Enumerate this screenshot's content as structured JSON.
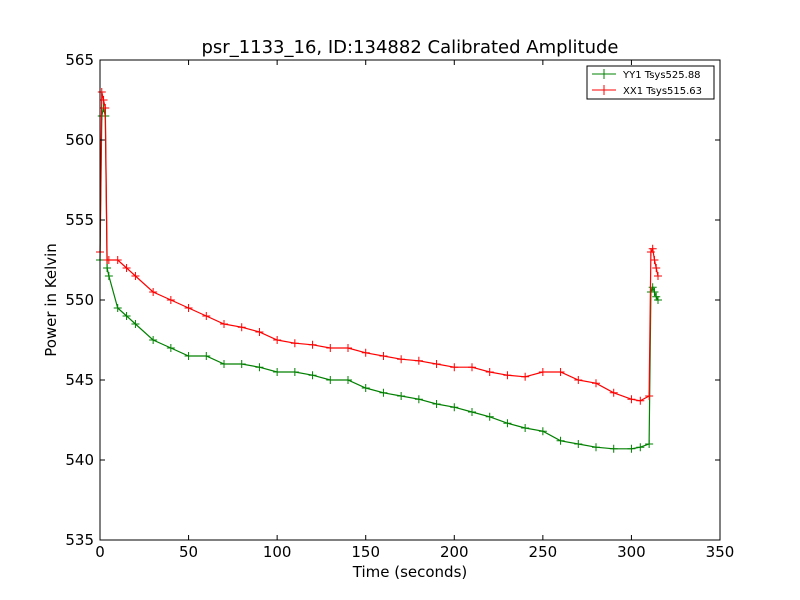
{
  "chart_data": {
    "type": "line",
    "title": "psr_1133_16, ID:134882 Calibrated Amplitude",
    "xlabel": "Time (seconds)",
    "ylabel": "Power in Kelvin",
    "xlim": [
      0,
      350
    ],
    "ylim": [
      535,
      565
    ],
    "xticks": [
      "0",
      "50",
      "100",
      "150",
      "200",
      "250",
      "300",
      "350"
    ],
    "yticks": [
      "535",
      "540",
      "545",
      "550",
      "555",
      "560",
      "565"
    ],
    "grid": false,
    "legend_position": "top-right",
    "marker": "+",
    "series": [
      {
        "name": "YY1 Tsys525.88",
        "color": "#008000",
        "x": [
          0,
          1,
          2,
          3,
          4,
          5,
          10,
          15,
          20,
          30,
          40,
          50,
          60,
          70,
          80,
          90,
          100,
          110,
          120,
          130,
          140,
          150,
          160,
          170,
          180,
          190,
          200,
          210,
          220,
          230,
          240,
          250,
          260,
          270,
          280,
          290,
          300,
          305,
          310,
          311,
          312,
          313,
          314,
          315
        ],
        "y": [
          552.5,
          561.5,
          562,
          561.5,
          552,
          551.5,
          549.5,
          549,
          548.5,
          547.5,
          547,
          546.5,
          546.5,
          546,
          546,
          545.8,
          545.5,
          545.5,
          545.3,
          545,
          545,
          544.5,
          544.2,
          544,
          543.8,
          543.5,
          543.3,
          543,
          542.7,
          542.3,
          542,
          541.8,
          541.2,
          541,
          540.8,
          540.7,
          540.7,
          540.8,
          541,
          550.5,
          550.8,
          550.5,
          550.2,
          550
        ]
      },
      {
        "name": "XX1 Tsys515.63",
        "color": "#ff0000",
        "x": [
          0,
          1,
          2,
          3,
          4,
          5,
          10,
          15,
          20,
          30,
          40,
          50,
          60,
          70,
          80,
          90,
          100,
          110,
          120,
          130,
          140,
          150,
          160,
          170,
          180,
          190,
          200,
          210,
          220,
          230,
          240,
          250,
          260,
          270,
          280,
          290,
          300,
          305,
          310,
          311,
          312,
          313,
          314,
          315
        ],
        "y": [
          553,
          563,
          562.5,
          562,
          552.5,
          552.5,
          552.5,
          552,
          551.5,
          550.5,
          550,
          549.5,
          549,
          548.5,
          548.3,
          548,
          547.5,
          547.3,
          547.2,
          547,
          547,
          546.7,
          546.5,
          546.3,
          546.2,
          546,
          545.8,
          545.8,
          545.5,
          545.3,
          545.2,
          545.5,
          545.5,
          545,
          544.8,
          544.2,
          543.8,
          543.7,
          544,
          553,
          553.2,
          552.5,
          552,
          551.5
        ]
      }
    ]
  }
}
